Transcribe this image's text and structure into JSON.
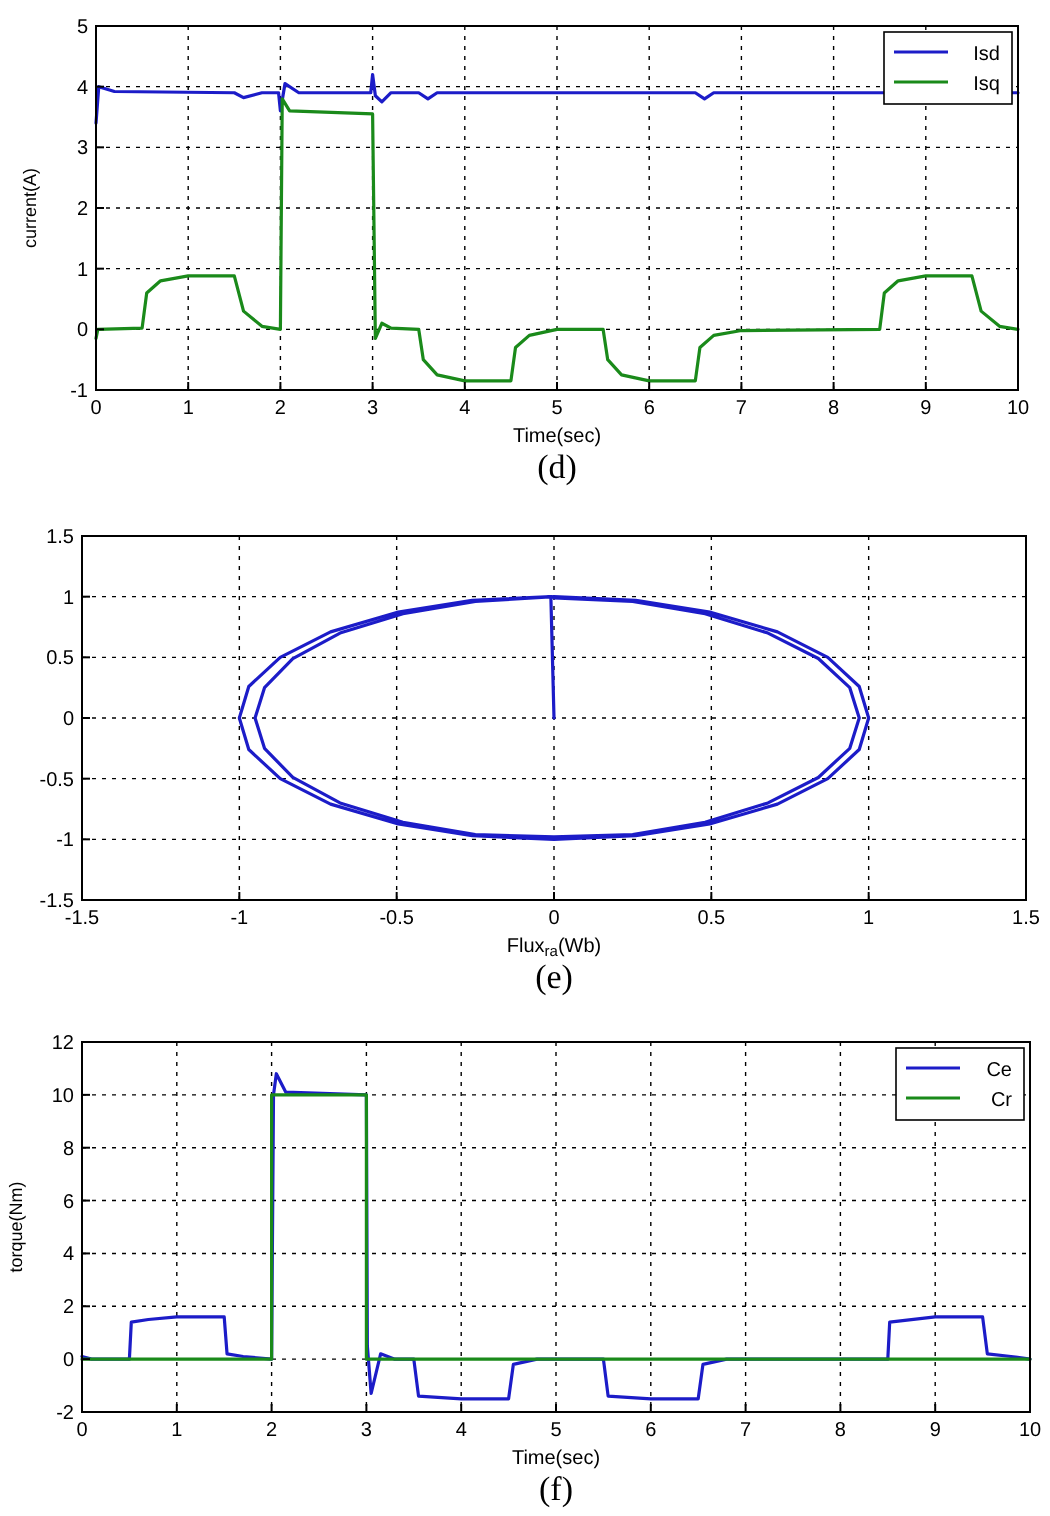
{
  "chart_data": [
    {
      "type": "line",
      "title": "(d)",
      "xlabel": "Time(sec)",
      "ylabel": "current(A)",
      "xlim": [
        0,
        10
      ],
      "ylim": [
        -1,
        5
      ],
      "xticks": [
        0,
        1,
        2,
        3,
        4,
        5,
        6,
        7,
        8,
        9,
        10
      ],
      "yticks": [
        -1,
        0,
        1,
        2,
        3,
        4,
        5
      ],
      "grid": true,
      "legend": "top right",
      "line_style": "solid",
      "marker": "none",
      "series": [
        {
          "name": "Isd",
          "color": "#1c1cc8",
          "x": [
            0,
            0.03,
            0.2,
            1.5,
            1.6,
            1.8,
            1.98,
            2.0,
            2.05,
            2.2,
            2.98,
            3.0,
            3.03,
            3.1,
            3.2,
            3.5,
            3.6,
            3.7,
            6.5,
            6.6,
            6.7,
            10
          ],
          "values": [
            3.4,
            4.0,
            3.92,
            3.9,
            3.82,
            3.9,
            3.9,
            3.6,
            4.05,
            3.9,
            3.9,
            4.2,
            3.85,
            3.75,
            3.9,
            3.9,
            3.8,
            3.9,
            3.9,
            3.8,
            3.9,
            3.9
          ]
        },
        {
          "name": "Isq",
          "color": "#1a8a1a",
          "x": [
            0,
            0.02,
            0.5,
            0.55,
            0.7,
            1.0,
            1.5,
            1.6,
            1.8,
            2.0,
            2.02,
            2.1,
            3.0,
            3.03,
            3.1,
            3.2,
            3.5,
            3.55,
            3.7,
            4.0,
            4.5,
            4.55,
            4.7,
            5.0,
            5.5,
            5.55,
            5.7,
            6.0,
            6.5,
            6.55,
            6.7,
            7.0,
            8.5,
            8.55,
            8.7,
            9.0,
            9.5,
            9.6,
            9.8,
            10
          ],
          "values": [
            -0.15,
            0,
            0.02,
            0.6,
            0.8,
            0.88,
            0.88,
            0.3,
            0.05,
            0,
            3.8,
            3.6,
            3.55,
            -0.15,
            0.1,
            0.02,
            0,
            -0.5,
            -0.75,
            -0.85,
            -0.85,
            -0.3,
            -0.1,
            0,
            0,
            -0.5,
            -0.75,
            -0.85,
            -0.85,
            -0.3,
            -0.1,
            -0.02,
            0,
            0.6,
            0.8,
            0.88,
            0.88,
            0.3,
            0.05,
            0
          ]
        }
      ]
    },
    {
      "type": "line",
      "title": "(e)",
      "xlabel": "Flux$_{ra}$(Wb)",
      "xlim": [
        -1.5,
        1.5
      ],
      "ylim": [
        -1.5,
        1.5
      ],
      "xticks": [
        -1.5,
        -1,
        -0.5,
        0,
        0.5,
        1,
        1.5
      ],
      "yticks": [
        -1.5,
        -1,
        -0.5,
        0,
        0.5,
        1,
        1.5
      ],
      "grid": true,
      "line_style": "solid",
      "marker": "none",
      "series": [
        {
          "color": "#1c1cc8",
          "x": [
            0,
            -0.01,
            -0.26,
            -0.5,
            -0.71,
            -0.87,
            -0.97,
            -1.0,
            -0.97,
            -0.87,
            -0.71,
            -0.5,
            -0.26,
            0,
            0.26,
            0.5,
            0.71,
            0.87,
            0.97,
            1.0,
            0.97,
            0.87,
            0.71,
            0.5,
            0.26,
            0,
            -0.25,
            -0.48,
            -0.68,
            -0.83,
            -0.92,
            -0.95,
            -0.92,
            -0.83,
            -0.68,
            -0.48,
            -0.25,
            0,
            0.25,
            0.48,
            0.68,
            0.84,
            0.94,
            0.97,
            0.94,
            0.84,
            0.68,
            0.48,
            0.25,
            0
          ],
          "values": [
            0,
            1.0,
            0.97,
            0.87,
            0.71,
            0.5,
            0.26,
            0,
            -0.26,
            -0.5,
            -0.71,
            -0.87,
            -0.97,
            -1.0,
            -0.97,
            -0.87,
            -0.71,
            -0.5,
            -0.26,
            0,
            0.26,
            0.5,
            0.71,
            0.87,
            0.97,
            1.0,
            0.96,
            0.86,
            0.7,
            0.49,
            0.25,
            0,
            -0.25,
            -0.49,
            -0.7,
            -0.86,
            -0.96,
            -0.98,
            -0.96,
            -0.86,
            -0.7,
            -0.49,
            -0.25,
            0,
            0.25,
            0.49,
            0.7,
            0.86,
            0.96,
            0.99
          ]
        }
      ]
    },
    {
      "type": "line",
      "title": "(f)",
      "xlabel": "Time(sec)",
      "ylabel": "torque(Nm)",
      "xlim": [
        0,
        10
      ],
      "ylim": [
        -2,
        12
      ],
      "xticks": [
        0,
        1,
        2,
        3,
        4,
        5,
        6,
        7,
        8,
        9,
        10
      ],
      "yticks": [
        -2,
        0,
        2,
        4,
        6,
        8,
        10,
        12
      ],
      "grid": true,
      "legend": "top right",
      "line_style": "solid",
      "marker": "none",
      "series": [
        {
          "name": "Ce",
          "color": "#1c1cc8",
          "x": [
            0,
            0.1,
            0.5,
            0.52,
            0.7,
            1.0,
            1.5,
            1.53,
            1.7,
            2.0,
            2.02,
            2.05,
            2.15,
            3.0,
            3.01,
            3.05,
            3.15,
            3.3,
            3.5,
            3.55,
            4.0,
            4.5,
            4.55,
            4.8,
            5.5,
            5.55,
            6.0,
            6.5,
            6.55,
            6.8,
            8.5,
            8.52,
            9.0,
            9.5,
            9.55,
            9.8,
            10
          ],
          "values": [
            0.1,
            0,
            0,
            1.4,
            1.5,
            1.6,
            1.6,
            0.2,
            0.1,
            0,
            10,
            10.8,
            10.1,
            10,
            0.5,
            -1.3,
            0.2,
            0,
            0,
            -1.4,
            -1.5,
            -1.5,
            -0.2,
            0,
            0,
            -1.4,
            -1.5,
            -1.5,
            -0.2,
            0,
            0,
            1.4,
            1.6,
            1.6,
            0.2,
            0.1,
            0
          ]
        },
        {
          "name": "Cr",
          "color": "#1a8a1a",
          "x": [
            0,
            2,
            2,
            3,
            3,
            10
          ],
          "values": [
            0,
            0,
            10,
            10,
            0,
            0
          ]
        }
      ]
    }
  ]
}
